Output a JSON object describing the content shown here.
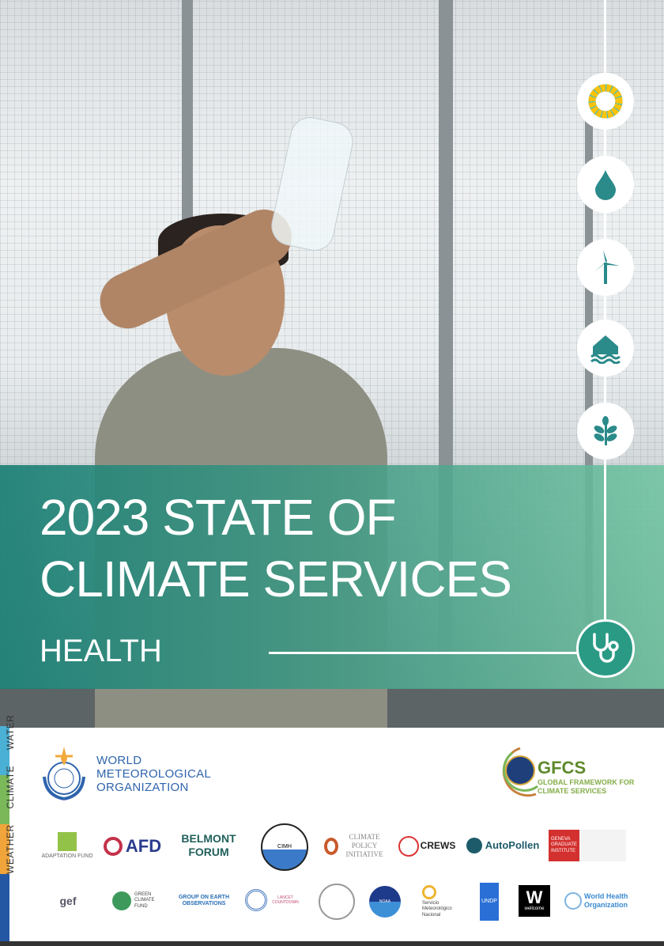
{
  "cover": {
    "title_line1": "2023 STATE OF",
    "title_line2": "CLIMATE SERVICES",
    "subtitle": "HEALTH",
    "theme_icons": [
      "sdg-wheel-icon",
      "water-drop-icon",
      "wind-turbine-icon",
      "flooded-house-icon",
      "plant-icon",
      "stethoscope-icon"
    ],
    "band_colors": [
      "#1c8076",
      "#6ec3a0"
    ]
  },
  "side_strip": {
    "labels": [
      "WEATHER",
      "CLIMATE",
      "WATER"
    ],
    "colors": [
      "#4bb0d6",
      "#7ab85a",
      "#f0a43a",
      "#2457a3"
    ]
  },
  "publisher": {
    "wmo_name": [
      "WORLD",
      "METEOROLOGICAL",
      "ORGANIZATION"
    ],
    "gfcs_abbr": "GFCS",
    "gfcs_name": [
      "GLOBAL FRAMEWORK FOR",
      "CLIMATE SERVICES"
    ]
  },
  "partners_row1": [
    "ADAPTATION FUND",
    "AFD",
    "BELMONT FORUM",
    "CIMH",
    "CLIMATE POLICY INITIATIVE",
    "CREWS",
    "AutoPollen",
    "GENEVA GRADUATE INSTITUTE"
  ],
  "partners_row2": [
    "gef",
    "GREEN CLIMATE FUND",
    "GROUP ON EARTH OBSERVATIONS",
    "LANCET COUNTDOWN",
    "",
    "NOAA",
    "Servicio Meteorológico Nacional",
    "UNDP",
    "wellcome",
    "World Health Organization"
  ]
}
